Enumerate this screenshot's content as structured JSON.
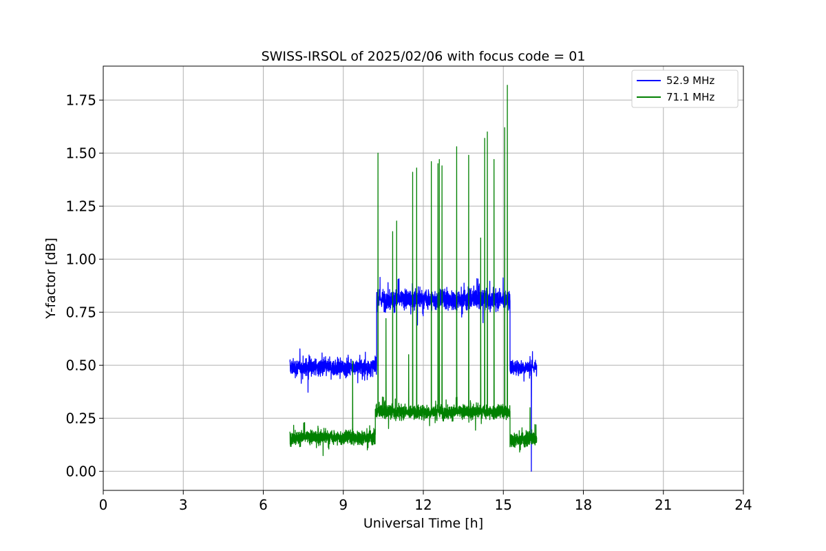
{
  "chart_data": {
    "type": "line",
    "title": "SWISS-IRSOL of 2025/02/06 with focus code = 01",
    "xlabel": "Universal Time [h]",
    "ylabel": "Y-factor [dB]",
    "xlim": [
      0,
      24
    ],
    "ylim": [
      -0.09,
      1.91
    ],
    "x_ticks": [
      0,
      3,
      6,
      9,
      12,
      15,
      18,
      21,
      24
    ],
    "x_tick_labels": [
      "0",
      "3",
      "6",
      "9",
      "12",
      "15",
      "18",
      "21",
      "24"
    ],
    "y_ticks": [
      0.0,
      0.25,
      0.5,
      0.75,
      1.0,
      1.25,
      1.5,
      1.75
    ],
    "y_tick_labels": [
      "0.00",
      "0.25",
      "0.50",
      "0.75",
      "1.00",
      "1.25",
      "1.50",
      "1.75"
    ],
    "grid": true,
    "legend_position": "top-right",
    "series": [
      {
        "name": "52.9 MHz",
        "color": "#0000ff",
        "segments": [
          {
            "x_start": 7.0,
            "x_end": 10.25,
            "mean": 0.49,
            "spread": 0.06
          },
          {
            "x_start": 10.25,
            "x_end": 15.25,
            "mean": 0.81,
            "spread": 0.07
          },
          {
            "x_start": 15.25,
            "x_end": 16.25,
            "mean": 0.49,
            "spread": 0.05
          }
        ],
        "spikes": [
          {
            "x": 16.05,
            "y": 0.0
          }
        ]
      },
      {
        "name": "71.1 MHz",
        "color": "#008000",
        "segments": [
          {
            "x_start": 7.0,
            "x_end": 10.2,
            "mean": 0.16,
            "spread": 0.05
          },
          {
            "x_start": 10.2,
            "x_end": 15.25,
            "mean": 0.28,
            "spread": 0.05
          },
          {
            "x_start": 15.25,
            "x_end": 16.25,
            "mean": 0.15,
            "spread": 0.05
          }
        ],
        "spikes": [
          {
            "x": 9.35,
            "y": 0.52
          },
          {
            "x": 10.3,
            "y": 1.5
          },
          {
            "x": 10.6,
            "y": 0.72
          },
          {
            "x": 10.85,
            "y": 1.13
          },
          {
            "x": 11.0,
            "y": 1.18
          },
          {
            "x": 11.45,
            "y": 0.55
          },
          {
            "x": 11.6,
            "y": 1.41
          },
          {
            "x": 11.75,
            "y": 1.43
          },
          {
            "x": 12.3,
            "y": 1.46
          },
          {
            "x": 12.55,
            "y": 1.45
          },
          {
            "x": 12.6,
            "y": 1.47
          },
          {
            "x": 12.7,
            "y": 1.44
          },
          {
            "x": 13.25,
            "y": 1.53
          },
          {
            "x": 13.7,
            "y": 1.49
          },
          {
            "x": 14.15,
            "y": 1.1
          },
          {
            "x": 14.3,
            "y": 1.57
          },
          {
            "x": 14.4,
            "y": 1.6
          },
          {
            "x": 14.65,
            "y": 1.47
          },
          {
            "x": 15.05,
            "y": 1.62
          },
          {
            "x": 15.15,
            "y": 1.82
          },
          {
            "x": 16.0,
            "y": 0.3
          }
        ]
      }
    ]
  }
}
